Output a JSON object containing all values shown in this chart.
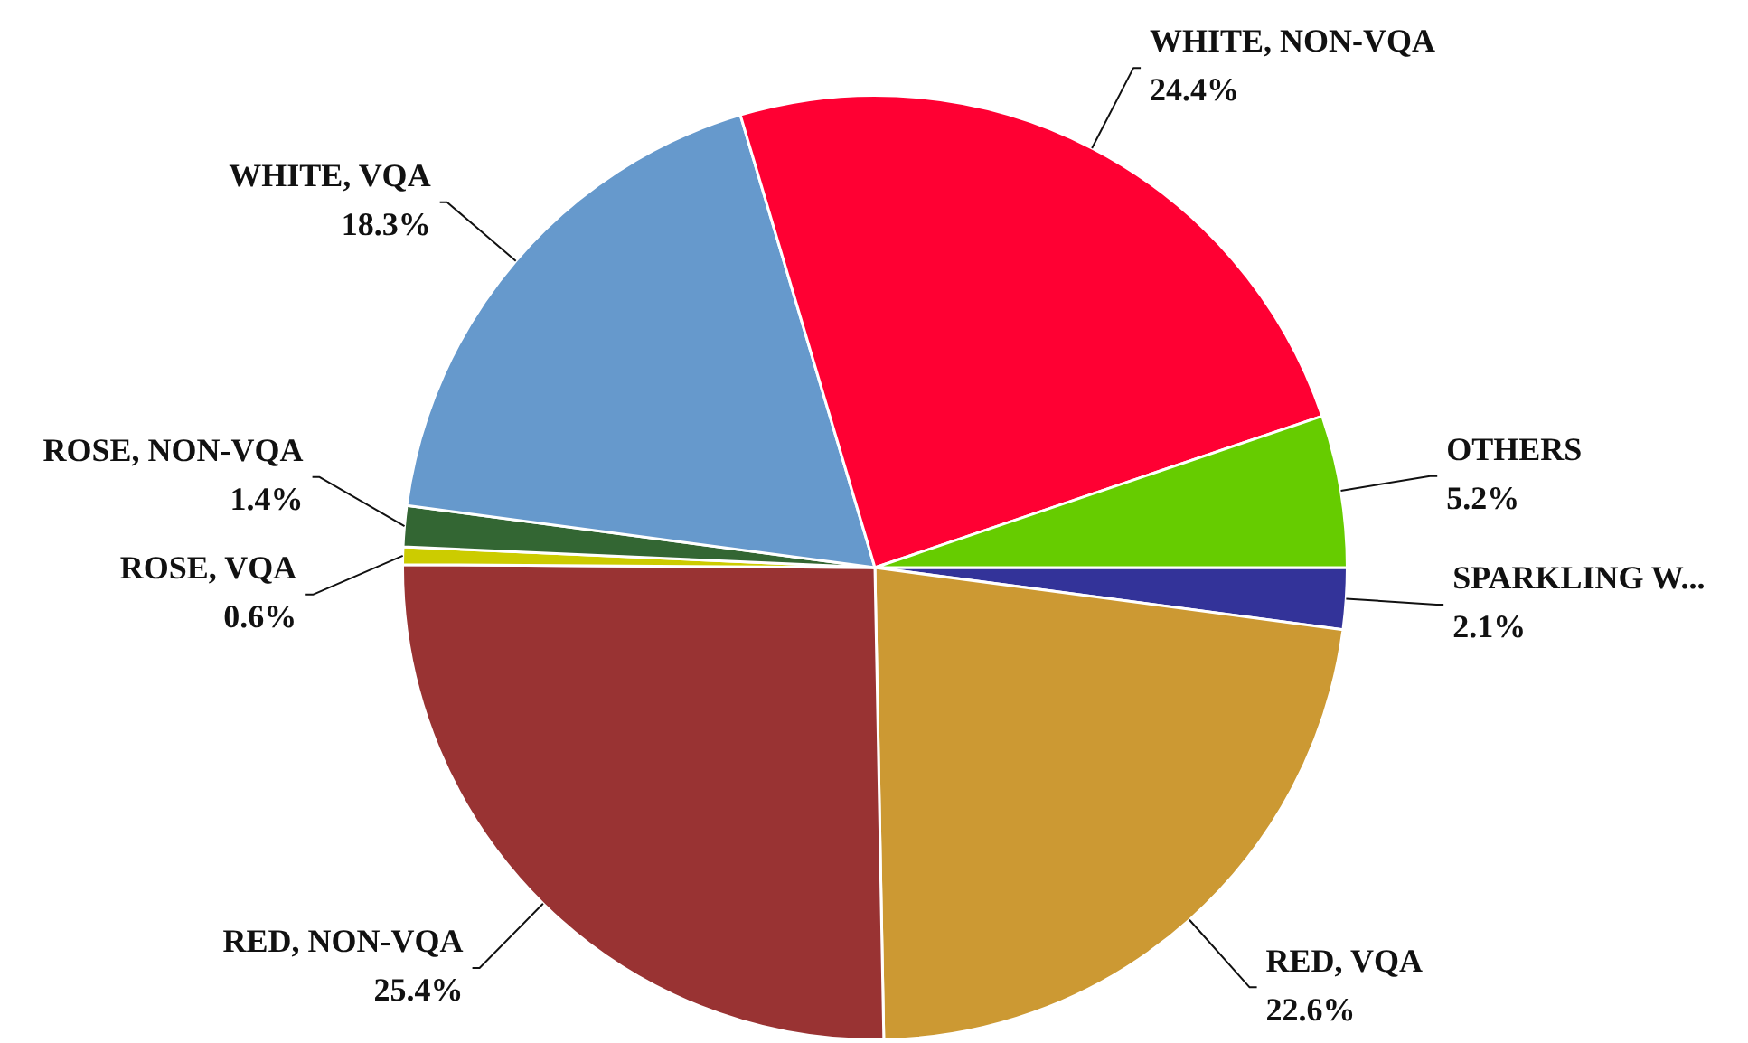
{
  "chart_data": {
    "type": "pie",
    "categories": [
      "SPARKLING W...",
      "RED, VQA",
      "RED, NON-VQA",
      "ROSE, VQA",
      "ROSE, NON-VQA",
      "WHITE, VQA",
      "WHITE, NON-VQA",
      "OTHERS"
    ],
    "values": [
      2.1,
      22.6,
      25.4,
      0.6,
      1.4,
      18.3,
      24.4,
      5.2
    ],
    "colors": [
      "#333399",
      "#cc9933",
      "#993333",
      "#cccc00",
      "#336633",
      "#6699cc",
      "#ff0033",
      "#66cc00"
    ],
    "value_labels": [
      "2.1%",
      "22.6%",
      "25.4%",
      "0.6%",
      "1.4%",
      "18.3%",
      "24.4%",
      "5.2%"
    ]
  }
}
